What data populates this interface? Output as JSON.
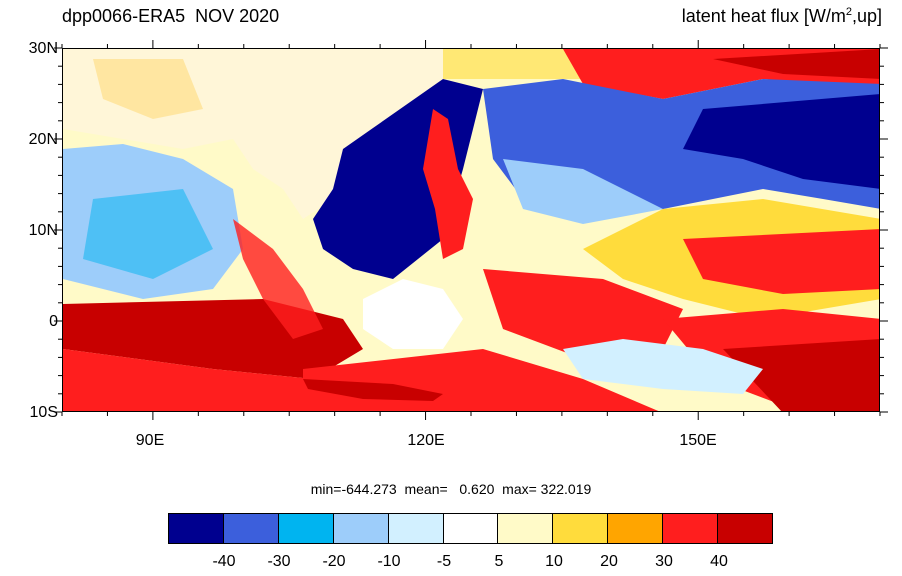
{
  "title_left": "dpp0066-ERA5  NOV 2020",
  "title_right_prefix": "latent heat flux [W/m",
  "title_right_sup": "2",
  "title_right_suffix": ",up]",
  "lat_labels": [
    "30N",
    "20N",
    "10N",
    "0",
    "10S"
  ],
  "lon_labels": [
    "90E",
    "120E",
    "150E"
  ],
  "stats": "min=-644.273  mean=   0.620  max= 322.019",
  "colorbar": {
    "colors": [
      "#00008f",
      "#3c5fdc",
      "#00b4f0",
      "#9dcdfa",
      "#d2f0ff",
      "#ffffff",
      "#fffac8",
      "#ffdc3c",
      "#ffa500",
      "#ff1e1e",
      "#c80000"
    ],
    "labels": [
      "-40",
      "-30",
      "-20",
      "-10",
      "-5",
      "5",
      "10",
      "20",
      "30",
      "40"
    ]
  },
  "map": {
    "extent_lon": [
      80,
      170
    ],
    "extent_lat": [
      -10,
      30
    ]
  }
}
